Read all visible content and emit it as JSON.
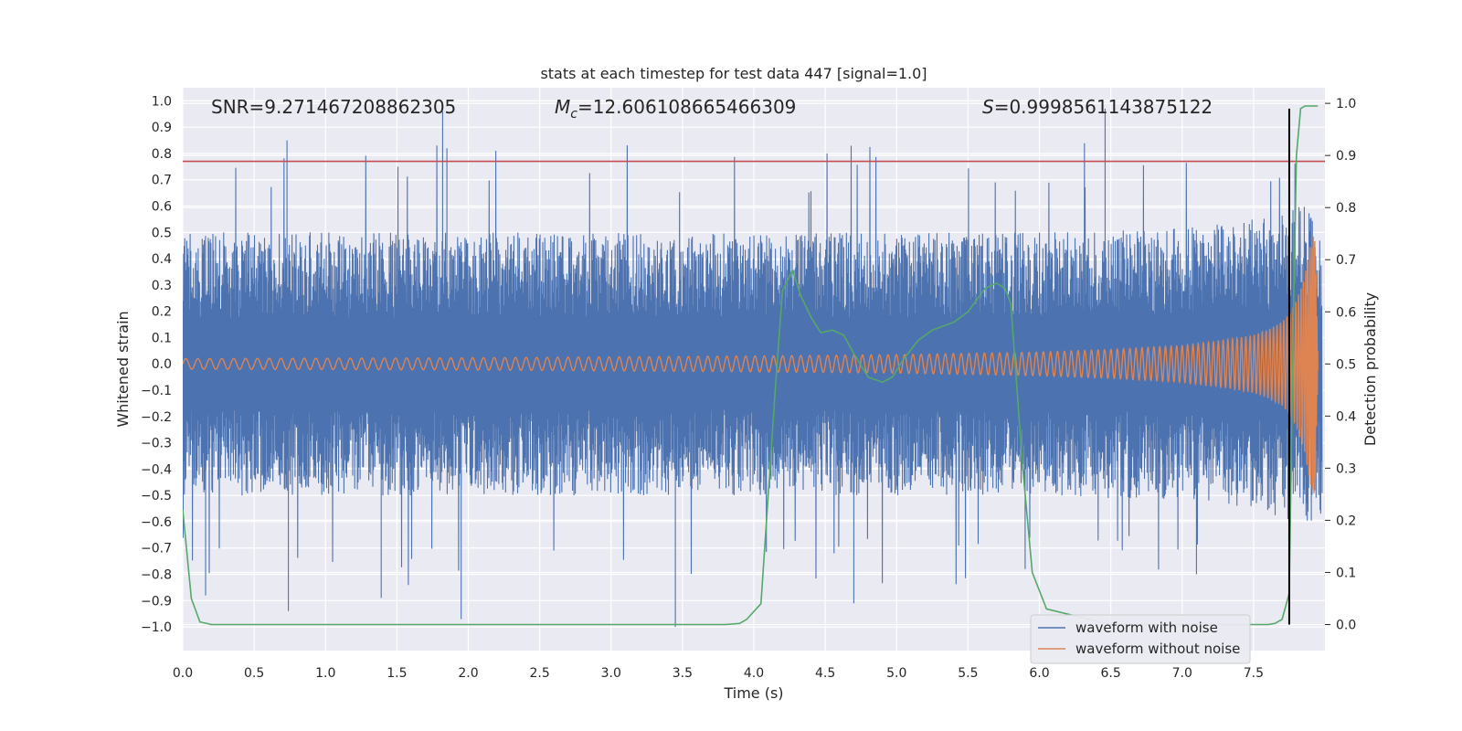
{
  "chart_data": {
    "type": "line",
    "title": "stats at each timestep for test data 447 [signal=1.0]",
    "xlabel": "Time (s)",
    "ylabel_left": "Whitened strain",
    "ylabel_right": "Detection probability",
    "xlim": [
      0.0,
      8.0
    ],
    "ylim_left": [
      -1.09,
      1.05
    ],
    "ylim_right": [
      -0.05,
      1.03
    ],
    "x_ticks": [
      0.0,
      0.5,
      1.0,
      1.5,
      2.0,
      2.5,
      3.0,
      3.5,
      4.0,
      4.5,
      5.0,
      5.5,
      6.0,
      6.5,
      7.0,
      7.5
    ],
    "x_tick_labels": [
      "0.0",
      "0.5",
      "1.0",
      "1.5",
      "2.0",
      "2.5",
      "3.0",
      "3.5",
      "4.0",
      "4.5",
      "5.0",
      "5.5",
      "6.0",
      "6.5",
      "7.0",
      "7.5"
    ],
    "y_ticks_left": [
      1.0,
      0.9,
      0.8,
      0.7,
      0.6,
      0.5,
      0.4,
      0.3,
      0.2,
      0.1,
      0.0,
      -0.1,
      -0.2,
      -0.3,
      -0.4,
      -0.5,
      -0.6,
      -0.7,
      -0.8,
      -0.9,
      -1.0
    ],
    "y_tick_labels_left": [
      "1.0",
      "0.9",
      "0.8",
      "0.7",
      "0.6",
      "0.5",
      "0.4",
      "0.3",
      "0.2",
      "0.1",
      "0.0",
      "−0.1",
      "−0.2",
      "−0.3",
      "−0.4",
      "−0.5",
      "−0.6",
      "−0.7",
      "−0.8",
      "−0.9",
      "−1.0"
    ],
    "y_ticks_right": [
      1.0,
      0.9,
      0.8,
      0.7,
      0.6,
      0.5,
      0.4,
      0.3,
      0.2,
      0.1,
      0.0
    ],
    "y_tick_labels_right": [
      "1.0",
      "0.9",
      "0.8",
      "0.7",
      "0.6",
      "0.5",
      "0.4",
      "0.3",
      "0.2",
      "0.1",
      "0.0"
    ],
    "grid": true,
    "legend_placement": "lower-right",
    "annotations": {
      "snr": "SNR=9.271467208862305",
      "mc_prefix": "M",
      "mc_sub": "c",
      "mc_value": "=12.606108665466309",
      "s_prefix": "S",
      "s_value": "=0.9998561143875122"
    },
    "threshold_line": {
      "y_left": 0.77,
      "color": "#c44e52"
    },
    "detection_marker": {
      "x": 7.75,
      "y_right_range": [
        0.0,
        0.99
      ],
      "color": "#000000"
    },
    "series": [
      {
        "name": "waveform with noise",
        "color": "#4c72b0",
        "axis": "left",
        "envelope_t": [
          0.0,
          1.0,
          2.0,
          3.0,
          4.0,
          5.0,
          6.0,
          7.0,
          7.5,
          7.8,
          8.0
        ],
        "envelope_amplitude": [
          0.5,
          0.5,
          0.5,
          0.5,
          0.5,
          0.5,
          0.5,
          0.52,
          0.55,
          0.6,
          0.6
        ],
        "peak_values": [
          {
            "t": 0.73,
            "y": 0.85
          },
          {
            "t": 1.82,
            "y": 0.96
          },
          {
            "t": 1.85,
            "y": 0.82
          },
          {
            "t": 6.46,
            "y": 0.97
          },
          {
            "t": 3.45,
            "y": -1.0
          },
          {
            "t": 0.74,
            "y": -0.94
          },
          {
            "t": 1.95,
            "y": -0.97
          },
          {
            "t": 0.16,
            "y": -0.88
          },
          {
            "t": 1.39,
            "y": -0.89
          },
          {
            "t": 5.9,
            "y": -0.78
          },
          {
            "t": 4.7,
            "y": -0.91
          },
          {
            "t": 7.1,
            "y": -0.8
          }
        ]
      },
      {
        "name": "waveform without noise",
        "color": "#dd8452",
        "axis": "left",
        "envelope_t": [
          0.0,
          2.0,
          4.0,
          5.0,
          6.0,
          6.5,
          7.0,
          7.3,
          7.5,
          7.6,
          7.7,
          7.75,
          7.8,
          7.85,
          7.9,
          7.93,
          7.95
        ],
        "envelope_amplitude": [
          0.02,
          0.023,
          0.03,
          0.035,
          0.045,
          0.055,
          0.07,
          0.09,
          0.11,
          0.13,
          0.16,
          0.19,
          0.24,
          0.32,
          0.46,
          0.5,
          0.03
        ],
        "cycles_approx": 150
      },
      {
        "name": "detection probability",
        "color": "#55a868",
        "axis": "right",
        "x": [
          0.0,
          0.06,
          0.12,
          0.2,
          0.4,
          1.0,
          2.0,
          3.0,
          3.8,
          3.9,
          3.95,
          4.05,
          4.15,
          4.2,
          4.27,
          4.33,
          4.4,
          4.47,
          4.55,
          4.63,
          4.7,
          4.8,
          4.9,
          4.97,
          5.05,
          5.15,
          5.25,
          5.4,
          5.5,
          5.62,
          5.7,
          5.76,
          5.8,
          5.88,
          5.95,
          6.05,
          6.5,
          7.0,
          7.5,
          7.6,
          7.65,
          7.7,
          7.75,
          7.78,
          7.8,
          7.83,
          7.86,
          7.95
        ],
        "y": [
          0.22,
          0.05,
          0.005,
          0.0,
          0.0,
          0.0,
          0.0,
          0.0,
          0.0,
          0.002,
          0.01,
          0.04,
          0.45,
          0.64,
          0.68,
          0.63,
          0.59,
          0.56,
          0.565,
          0.555,
          0.52,
          0.475,
          0.465,
          0.475,
          0.51,
          0.545,
          0.565,
          0.58,
          0.6,
          0.645,
          0.655,
          0.645,
          0.615,
          0.31,
          0.1,
          0.03,
          0.0,
          0.0,
          0.0,
          0.0,
          0.002,
          0.01,
          0.06,
          0.6,
          0.9,
          0.99,
          0.995,
          0.995
        ]
      }
    ]
  }
}
